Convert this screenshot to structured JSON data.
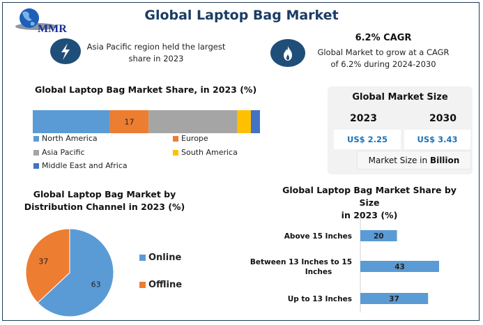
{
  "header": {
    "title": "Global Laptop Bag Market",
    "logo_text": "MMR"
  },
  "highlights": [
    {
      "icon": "lightning-icon",
      "heading": "",
      "text_line1": "Asia Pacific region held the largest",
      "text_line2": "share in 2023"
    },
    {
      "icon": "flame-icon",
      "heading": "6.2% CAGR",
      "text_line1": "Global Market to grow at a CAGR",
      "text_line2": "of 6.2% during 2024-2030"
    }
  ],
  "market_size": {
    "title": "Global Market Size",
    "years": [
      "2023",
      "2030"
    ],
    "values": [
      "US$ 2.25",
      "US$ 3.43"
    ],
    "unit_prefix": "Market Size in ",
    "unit_bold": "Billion"
  },
  "colors": {
    "accent": "#1f4e79",
    "title": "#1a3c63",
    "north_america": "#5b9bd5",
    "europe": "#ed7d31",
    "asia_pacific": "#a5a5a5",
    "south_america": "#ffc000",
    "mea": "#4472c4",
    "online": "#5b9bd5",
    "offline": "#ed7d31",
    "size_bar": "#5b9bd5"
  },
  "chart_data": [
    {
      "type": "bar",
      "orientation": "stacked-horizontal",
      "title": "Global Laptop Bag Market Share, in 2023 (%)",
      "categories": [
        "North America",
        "Europe",
        "Asia Pacific",
        "South America",
        "Middle East and Africa"
      ],
      "values": [
        34,
        17,
        39,
        6,
        4
      ],
      "data_labels": [
        "",
        "17",
        "",
        "",
        ""
      ],
      "legend": "bottom"
    },
    {
      "type": "pie",
      "title_line1": "Global Laptop Bag Market by",
      "title_line2": "Distribution Channel in 2023 (%)",
      "categories": [
        "Online",
        "Offline"
      ],
      "values": [
        63,
        37
      ],
      "data_labels": [
        "63",
        "37"
      ],
      "legend": "right"
    },
    {
      "type": "bar",
      "orientation": "horizontal",
      "title_line1": "Global Laptop Bag Market Share by Size",
      "title_line2": "in 2023 (%)",
      "categories": [
        "Above 15 Inches",
        "Between 13 Inches to 15",
        "Up to 13 Inches"
      ],
      "category_line2": [
        "",
        "Inches",
        ""
      ],
      "values": [
        20,
        43,
        37
      ],
      "data_labels": [
        "20",
        "43",
        "37"
      ],
      "xlim": [
        0,
        50
      ]
    }
  ]
}
